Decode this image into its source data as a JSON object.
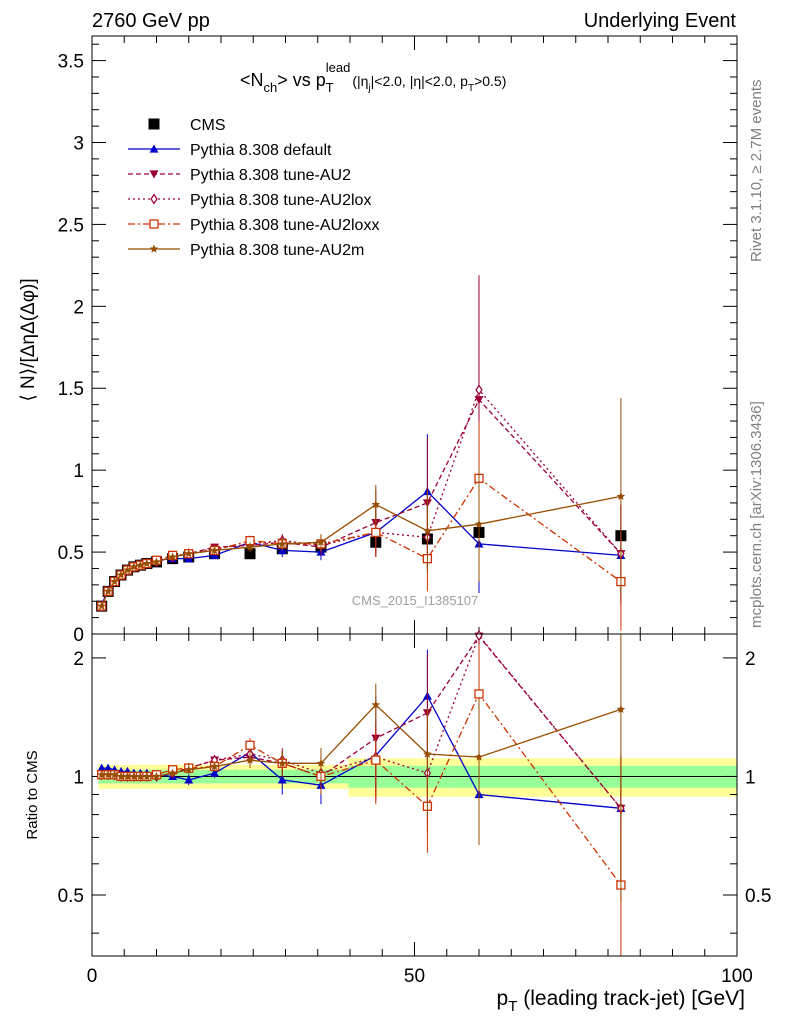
{
  "header": {
    "left": "2760 GeV pp",
    "right": "Underlying Event",
    "side_rivet": "Rivet 3.1.10, ≥ 2.7M events",
    "side_mcplots": "mcplots.cern.ch [arXiv:1306.3436]"
  },
  "chart_data": [
    {
      "type": "scatter",
      "panel": "main",
      "title": "<N_ch> vs p_T^lead (|η_j|<2.0, |η|<2.0, p_T>0.5)",
      "title_parts": {
        "pre": "<N",
        "sub1": "ch",
        "mid": "> vs p",
        "sub2": "T",
        "sup2": "lead",
        "cond_a": "(|η",
        "cond_sub": "j",
        "cond_b": "|<2.0, |η|<2.0, p",
        "cond_sub2": "T",
        "cond_c": ">0.5)"
      },
      "ylabel": "⟨ N⟩/[ΔηΔ(Δφ)]",
      "watermark": "CMS_2015_I1385107",
      "xlim": [
        0,
        100
      ],
      "ylim": [
        0,
        3.65
      ],
      "yticks": [
        0,
        0.5,
        1,
        1.5,
        2,
        2.5,
        3,
        3.5
      ],
      "ytick_labels": [
        "0",
        "0.5",
        "1",
        "1.5",
        "2",
        "2.5",
        "3",
        "3.5"
      ],
      "legend_position": "top-left",
      "series": [
        {
          "name": "CMS",
          "color": "#000000",
          "marker": "square-filled",
          "line": "none",
          "x": [
            1.5,
            2.5,
            3.5,
            4.5,
            5.5,
            6.5,
            7.5,
            8.5,
            10,
            12.5,
            15,
            19,
            24.5,
            29.5,
            35.5,
            44,
            52,
            60,
            82
          ],
          "y": [
            0.17,
            0.26,
            0.32,
            0.36,
            0.39,
            0.41,
            0.42,
            0.43,
            0.44,
            0.46,
            0.47,
            0.49,
            0.49,
            0.52,
            0.53,
            0.56,
            0.58,
            0.62,
            0.6
          ]
        },
        {
          "name": "Pythia 8.308 default",
          "color": "#0000cc",
          "marker": "triangle-up-filled",
          "line": "solid",
          "x": [
            1.5,
            2.5,
            3.5,
            4.5,
            5.5,
            6.5,
            7.5,
            8.5,
            10,
            12.5,
            15,
            19,
            24.5,
            29.5,
            35.5,
            44,
            52,
            60,
            82
          ],
          "y": [
            0.18,
            0.27,
            0.33,
            0.37,
            0.4,
            0.42,
            0.43,
            0.44,
            0.45,
            0.46,
            0.46,
            0.48,
            0.56,
            0.51,
            0.5,
            0.62,
            0.87,
            0.55,
            0.48
          ],
          "err": [
            0.01,
            0.01,
            0.01,
            0.01,
            0.01,
            0.01,
            0.01,
            0.01,
            0.01,
            0.01,
            0.01,
            0.02,
            0.02,
            0.04,
            0.05,
            0.12,
            0.35,
            0.3,
            0.3
          ]
        },
        {
          "name": "Pythia 8.308 tune-AU2",
          "color": "#990033",
          "marker": "triangle-down-filled",
          "line": "dashed",
          "x": [
            1.5,
            2.5,
            3.5,
            4.5,
            5.5,
            6.5,
            7.5,
            8.5,
            10,
            12.5,
            15,
            19,
            24.5,
            29.5,
            35.5,
            44,
            52,
            60,
            82
          ],
          "y": [
            0.17,
            0.26,
            0.32,
            0.36,
            0.39,
            0.41,
            0.42,
            0.43,
            0.44,
            0.47,
            0.49,
            0.53,
            0.54,
            0.56,
            0.53,
            0.68,
            0.8,
            1.43,
            0.49
          ],
          "err": [
            0.01,
            0.01,
            0.01,
            0.01,
            0.01,
            0.01,
            0.01,
            0.01,
            0.01,
            0.01,
            0.01,
            0.02,
            0.03,
            0.04,
            0.05,
            0.2,
            0.4,
            0.75,
            0.3
          ]
        },
        {
          "name": "Pythia 8.308 tune-AU2lox",
          "color": "#990033",
          "marker": "diamond-open",
          "line": "dotted",
          "x": [
            1.5,
            2.5,
            3.5,
            4.5,
            5.5,
            6.5,
            7.5,
            8.5,
            10,
            12.5,
            15,
            19,
            24.5,
            29.5,
            35.5,
            44,
            52,
            60,
            82
          ],
          "y": [
            0.17,
            0.26,
            0.32,
            0.36,
            0.39,
            0.41,
            0.42,
            0.43,
            0.44,
            0.47,
            0.49,
            0.52,
            0.55,
            0.57,
            0.54,
            0.62,
            0.59,
            1.49,
            0.49
          ],
          "err": [
            0.01,
            0.01,
            0.01,
            0.01,
            0.01,
            0.01,
            0.01,
            0.01,
            0.01,
            0.01,
            0.01,
            0.02,
            0.03,
            0.04,
            0.05,
            0.15,
            0.2,
            0.7,
            0.3
          ]
        },
        {
          "name": "Pythia 8.308 tune-AU2loxx",
          "color": "#cc3300",
          "marker": "square-open",
          "line": "dashdot",
          "x": [
            1.5,
            2.5,
            3.5,
            4.5,
            5.5,
            6.5,
            7.5,
            8.5,
            10,
            12.5,
            15,
            19,
            24.5,
            29.5,
            35.5,
            44,
            52,
            60,
            82
          ],
          "y": [
            0.17,
            0.26,
            0.32,
            0.36,
            0.39,
            0.41,
            0.42,
            0.43,
            0.45,
            0.48,
            0.49,
            0.51,
            0.57,
            0.55,
            0.55,
            0.62,
            0.46,
            0.95,
            0.32
          ],
          "err": [
            0.01,
            0.01,
            0.01,
            0.01,
            0.01,
            0.01,
            0.01,
            0.01,
            0.01,
            0.01,
            0.01,
            0.02,
            0.03,
            0.04,
            0.05,
            0.15,
            0.2,
            0.35,
            0.3
          ]
        },
        {
          "name": "Pythia 8.308 tune-AU2m",
          "color": "#994d00",
          "marker": "star-filled",
          "line": "solid",
          "x": [
            1.5,
            2.5,
            3.5,
            4.5,
            5.5,
            6.5,
            7.5,
            8.5,
            10,
            12.5,
            15,
            19,
            24.5,
            29.5,
            35.5,
            44,
            52,
            60,
            82
          ],
          "y": [
            0.17,
            0.26,
            0.32,
            0.36,
            0.39,
            0.41,
            0.42,
            0.43,
            0.44,
            0.47,
            0.49,
            0.51,
            0.53,
            0.55,
            0.56,
            0.79,
            0.63,
            0.67,
            0.84
          ],
          "err": [
            0.01,
            0.01,
            0.01,
            0.01,
            0.01,
            0.01,
            0.01,
            0.01,
            0.01,
            0.01,
            0.01,
            0.02,
            0.03,
            0.04,
            0.05,
            0.12,
            0.25,
            0.35,
            0.6
          ]
        }
      ]
    },
    {
      "type": "scatter",
      "panel": "ratio",
      "xlabel": "p_T (leading track-jet) [GeV]",
      "xlabel_parts": {
        "pre": "p",
        "sub": "T",
        "post": " (leading track-jet) [GeV]"
      },
      "ylabel": "Ratio to CMS",
      "xlim": [
        0,
        100
      ],
      "ylim": [
        0.35,
        2.3
      ],
      "xticks": [
        0,
        50,
        100
      ],
      "xtick_labels": [
        "0",
        "50",
        "100"
      ],
      "yticks": [
        0.5,
        1,
        2
      ],
      "ytick_labels": [
        "0.5",
        "1",
        "2"
      ],
      "band_inner": {
        "color": "#99ff99",
        "half_width": 0.04
      },
      "band_outer": {
        "color": "#ffff99",
        "half_width": 0.07
      },
      "series": [
        {
          "name": "Pythia 8.308 default",
          "color": "#0000cc",
          "y": [
            1.05,
            1.05,
            1.04,
            1.03,
            1.03,
            1.02,
            1.02,
            1.02,
            1.01,
            1.0,
            0.98,
            1.02,
            1.15,
            0.98,
            0.95,
            1.13,
            1.6,
            0.9,
            0.83
          ],
          "err": [
            0.02,
            0.02,
            0.02,
            0.02,
            0.02,
            0.02,
            0.02,
            0.02,
            0.02,
            0.02,
            0.03,
            0.03,
            0.05,
            0.08,
            0.1,
            0.2,
            0.5,
            0.15,
            0.1
          ]
        },
        {
          "name": "Pythia 8.308 tune-AU2",
          "color": "#990033",
          "y": [
            1.01,
            1.01,
            1.01,
            1.0,
            1.0,
            1.0,
            1.0,
            1.0,
            1.0,
            1.02,
            1.05,
            1.1,
            1.12,
            1.08,
            1.0,
            1.25,
            1.45,
            2.27,
            0.83
          ],
          "err": [
            0.02,
            0.02,
            0.02,
            0.02,
            0.02,
            0.02,
            0.02,
            0.02,
            0.02,
            0.02,
            0.03,
            0.03,
            0.05,
            0.08,
            0.1,
            0.35,
            0.6,
            1.1,
            0.3
          ]
        },
        {
          "name": "Pythia 8.308 tune-AU2lox",
          "color": "#990033",
          "y": [
            1.01,
            1.01,
            1.01,
            1.0,
            1.0,
            1.0,
            1.0,
            1.0,
            1.0,
            1.02,
            1.05,
            1.1,
            1.14,
            1.1,
            1.02,
            1.12,
            1.02,
            2.28,
            0.83
          ],
          "err": [
            0.02,
            0.02,
            0.02,
            0.02,
            0.02,
            0.02,
            0.02,
            0.02,
            0.02,
            0.02,
            0.03,
            0.03,
            0.05,
            0.08,
            0.1,
            0.25,
            0.3,
            1.1,
            0.3
          ]
        },
        {
          "name": "Pythia 8.308 tune-AU2loxx",
          "color": "#cc3300",
          "y": [
            1.01,
            1.01,
            1.01,
            1.0,
            1.0,
            1.0,
            1.0,
            1.0,
            1.01,
            1.04,
            1.05,
            1.06,
            1.2,
            1.08,
            1.0,
            1.1,
            0.84,
            1.62,
            0.53
          ],
          "err": [
            0.02,
            0.02,
            0.02,
            0.02,
            0.02,
            0.02,
            0.02,
            0.02,
            0.02,
            0.02,
            0.03,
            0.03,
            0.05,
            0.08,
            0.1,
            0.25,
            0.2,
            0.55,
            0.45
          ]
        },
        {
          "name": "Pythia 8.308 tune-AU2m",
          "color": "#994d00",
          "y": [
            1.01,
            1.01,
            1.01,
            1.0,
            1.0,
            1.0,
            1.0,
            1.0,
            1.0,
            1.02,
            1.04,
            1.06,
            1.1,
            1.08,
            1.08,
            1.52,
            1.14,
            1.12,
            1.48
          ],
          "err": [
            0.02,
            0.02,
            0.02,
            0.02,
            0.02,
            0.02,
            0.02,
            0.02,
            0.02,
            0.02,
            0.03,
            0.03,
            0.05,
            0.08,
            0.1,
            0.2,
            0.35,
            0.45,
            1.0
          ]
        }
      ]
    }
  ]
}
